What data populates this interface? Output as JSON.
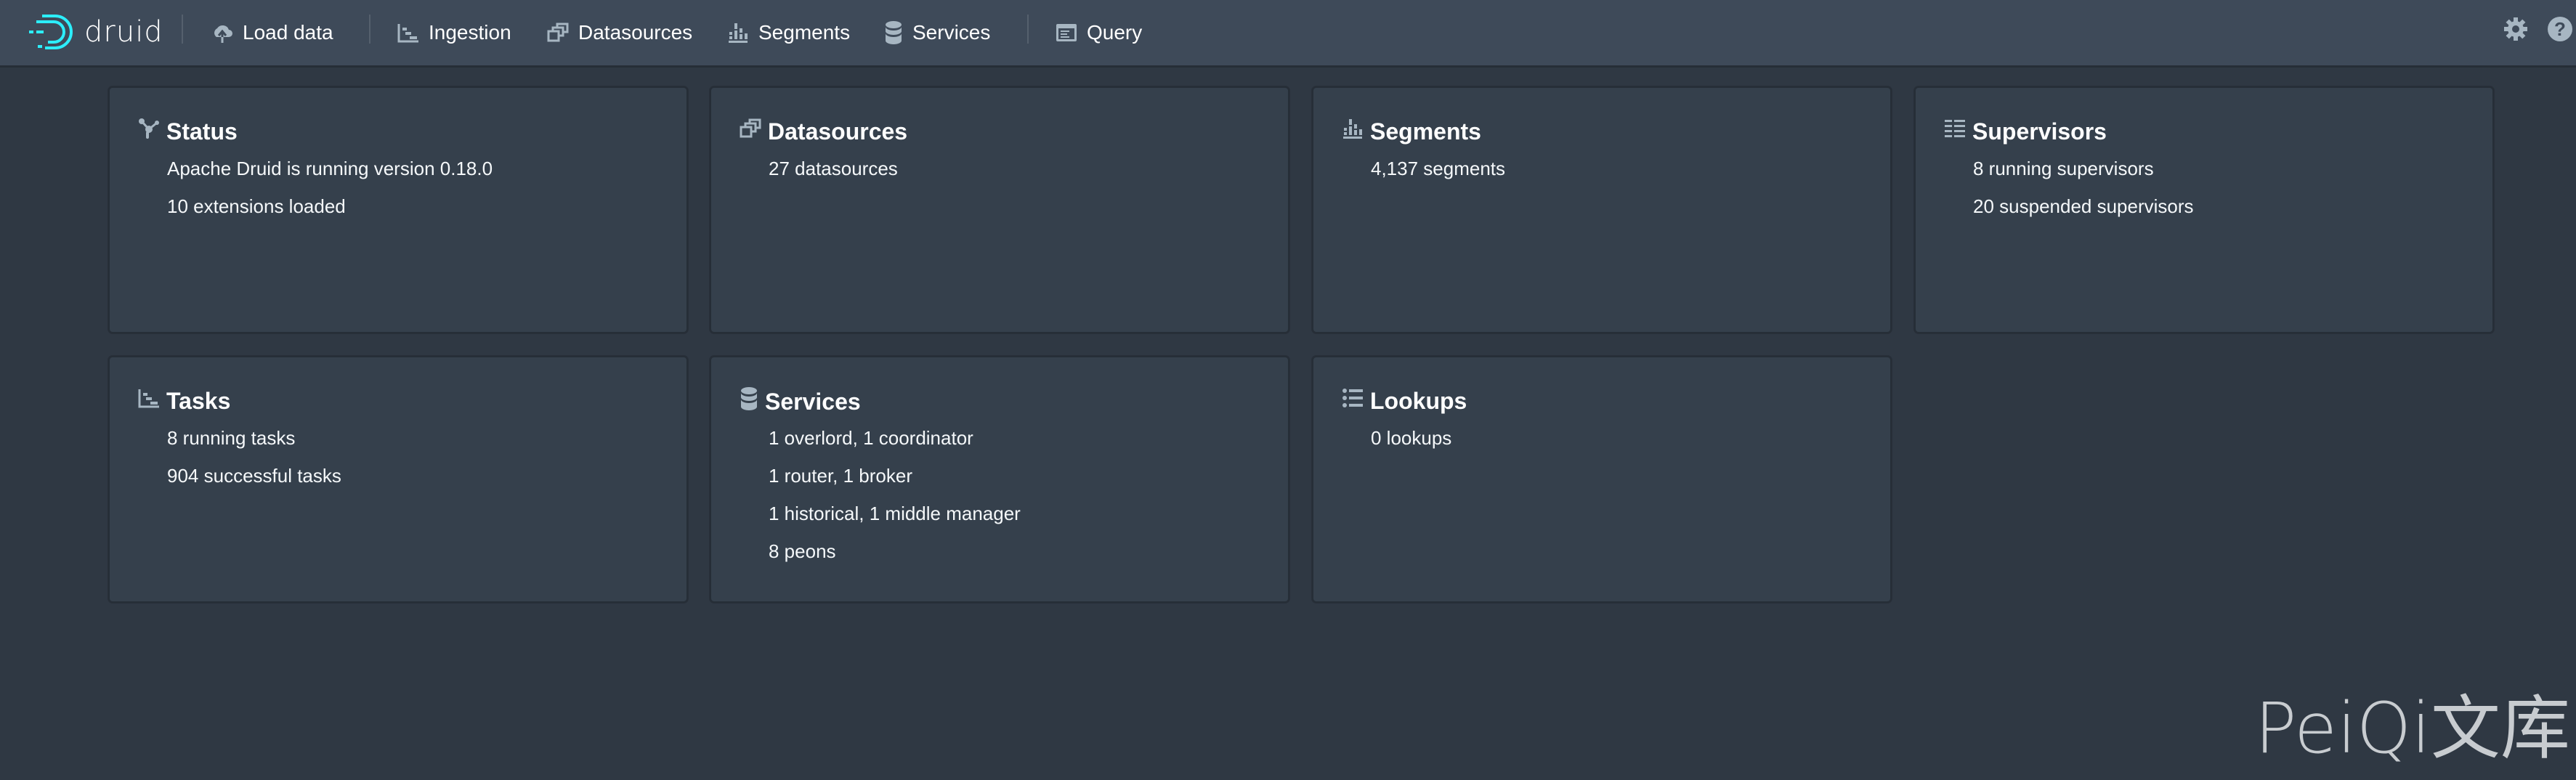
{
  "nav": {
    "logo_text": "druid",
    "items": [
      {
        "label": "Load data",
        "icon": "cloud-upload-icon"
      },
      {
        "label": "Ingestion",
        "icon": "gantt-chart-icon"
      },
      {
        "label": "Datasources",
        "icon": "multi-select-icon"
      },
      {
        "label": "Segments",
        "icon": "stacked-chart-icon"
      },
      {
        "label": "Services",
        "icon": "database-icon"
      },
      {
        "label": "Query",
        "icon": "application-icon"
      }
    ],
    "right_icons": [
      "cog-icon",
      "help-icon"
    ]
  },
  "cards": [
    {
      "title": "Status",
      "icon": "graph-icon",
      "lines": [
        "Apache Druid is running version 0.18.0",
        "10 extensions loaded"
      ]
    },
    {
      "title": "Datasources",
      "icon": "multi-select-icon",
      "lines": [
        "27 datasources"
      ]
    },
    {
      "title": "Segments",
      "icon": "stacked-chart-icon",
      "lines": [
        "4,137 segments"
      ]
    },
    {
      "title": "Supervisors",
      "icon": "list-columns-icon",
      "lines": [
        "8 running supervisors",
        "20 suspended supervisors"
      ]
    },
    {
      "title": "Tasks",
      "icon": "gantt-chart-icon",
      "lines": [
        "8 running tasks",
        "904 successful tasks"
      ]
    },
    {
      "title": "Services",
      "icon": "database-icon",
      "lines": [
        "1 overlord, 1 coordinator",
        "1 router, 1 broker",
        "1 historical, 1 middle manager",
        "8 peons"
      ]
    },
    {
      "title": "Lookups",
      "icon": "properties-icon",
      "lines": [
        "0 lookups"
      ]
    }
  ],
  "watermark": "PeiQi文库",
  "colors": {
    "navbar": "#3e4a59",
    "background": "#2f3843",
    "card": "#35404c",
    "logo_accent": "#2ceefb",
    "icon": "#a7b6c2"
  }
}
